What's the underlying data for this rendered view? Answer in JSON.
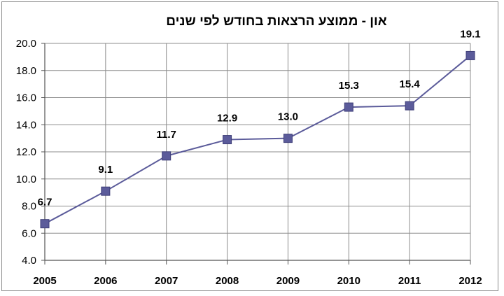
{
  "chart_data": {
    "type": "line",
    "title": "און - ממוצע הרצאות בחודש לפי שנים",
    "x": [
      "2005",
      "2006",
      "2007",
      "2008",
      "2009",
      "2010",
      "2011",
      "2012"
    ],
    "series": [
      {
        "values": [
          6.7,
          9.1,
          11.7,
          12.9,
          13.0,
          15.3,
          15.4,
          19.1
        ],
        "labels": [
          "6.7",
          "9.1",
          "11.7",
          "12.9",
          "13.0",
          "15.3",
          "15.4",
          "19.1"
        ],
        "color": "#5b5b9a",
        "marker": "square"
      }
    ],
    "ylim": [
      4.0,
      20.0
    ],
    "yticks": [
      "4.0",
      "6.0",
      "8.0",
      "10.0",
      "12.0",
      "14.0",
      "16.0",
      "18.0",
      "20.0"
    ],
    "grid": true,
    "legend": "none"
  }
}
